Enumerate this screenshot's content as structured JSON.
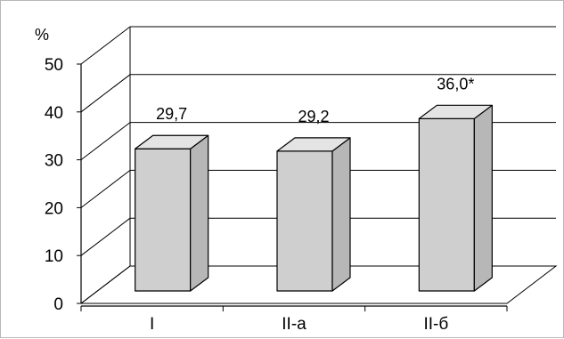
{
  "chart_data": {
    "type": "bar",
    "categories": [
      "I",
      "II-a",
      "II-б"
    ],
    "values": [
      29.7,
      29.2,
      36.0
    ],
    "data_labels": [
      "29,7",
      "29,2",
      "36,0*"
    ],
    "ylabel": "%",
    "ylim": [
      0,
      50
    ],
    "yticks": [
      0,
      10,
      20,
      30,
      40,
      50
    ],
    "ytick_labels": [
      "0",
      "10",
      "20",
      "30",
      "40",
      "50"
    ],
    "grid": true,
    "style": "3d",
    "colors": {
      "bar_front": "#cfcfcf",
      "bar_top": "#e4e4e4",
      "bar_side": "#b7b7b7",
      "axes": "#000000",
      "grid": "#000000"
    }
  }
}
